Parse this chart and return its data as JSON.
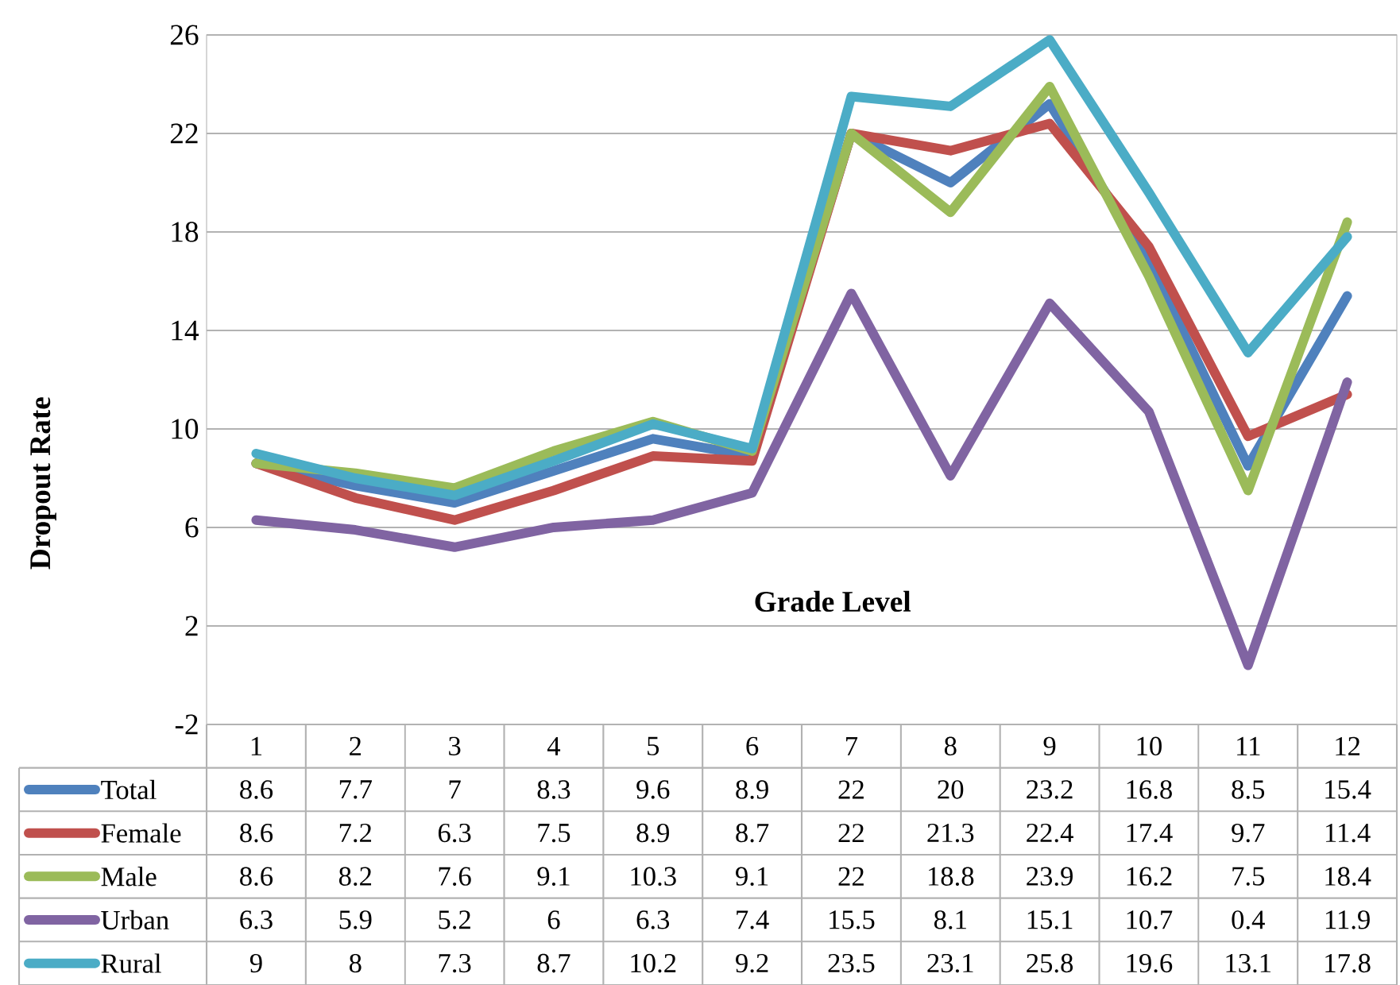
{
  "chart_data": {
    "type": "line",
    "xlabel": "Grade Level",
    "ylabel": "Dropout Rate",
    "categories": [
      "1",
      "2",
      "3",
      "4",
      "5",
      "6",
      "7",
      "8",
      "9",
      "10",
      "11",
      "12"
    ],
    "series": [
      {
        "name": "Total",
        "color": "#4f81bd",
        "values": [
          8.6,
          7.7,
          7,
          8.3,
          9.6,
          8.9,
          22,
          20,
          23.2,
          16.8,
          8.5,
          15.4
        ]
      },
      {
        "name": "Female",
        "color": "#c0504d",
        "values": [
          8.6,
          7.2,
          6.3,
          7.5,
          8.9,
          8.7,
          22,
          21.3,
          22.4,
          17.4,
          9.7,
          11.4
        ]
      },
      {
        "name": "Male",
        "color": "#9bbb59",
        "values": [
          8.6,
          8.2,
          7.6,
          9.1,
          10.3,
          9.1,
          22,
          18.8,
          23.9,
          16.2,
          7.5,
          18.4
        ]
      },
      {
        "name": "Urban",
        "color": "#8064a2",
        "values": [
          6.3,
          5.9,
          5.2,
          6,
          6.3,
          7.4,
          15.5,
          8.1,
          15.1,
          10.7,
          0.4,
          11.9
        ]
      },
      {
        "name": "Rural",
        "color": "#4bacc6",
        "values": [
          9,
          8,
          7.3,
          8.7,
          10.2,
          9.2,
          23.5,
          23.1,
          25.8,
          19.6,
          13.1,
          17.8
        ]
      }
    ],
    "ylim": [
      -2,
      26
    ],
    "yticks": [
      -2,
      2,
      6,
      10,
      14,
      18,
      22,
      26
    ],
    "grid": true,
    "legend": "bottom",
    "data_labels": true,
    "marker": "none",
    "line_style": "solid"
  }
}
